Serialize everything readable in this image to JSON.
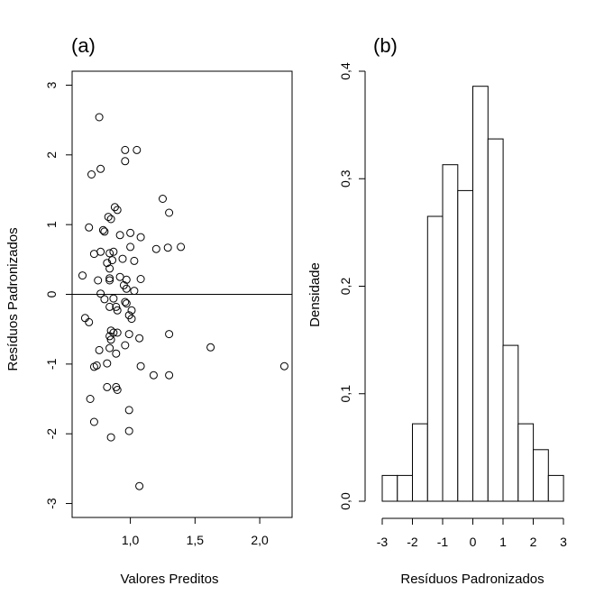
{
  "chart_data": [
    {
      "type": "scatter",
      "panel_label": "(a)",
      "xlabel": "Valores Preditos",
      "ylabel": "Resíduos Padronizados",
      "xlim": [
        0.55,
        2.25
      ],
      "ylim": [
        -3.2,
        3.2
      ],
      "xticks": [
        1.0,
        1.5,
        2.0
      ],
      "xtick_labels": [
        "1,0",
        "1,5",
        "2,0"
      ],
      "yticks": [
        -3,
        -2,
        -1,
        0,
        1,
        2,
        3
      ],
      "ytick_labels": [
        "-3",
        "-2",
        "-1",
        "0",
        "1",
        "2",
        "3"
      ],
      "hline": 0,
      "grid": false,
      "points": [
        [
          0.76,
          2.54
        ],
        [
          0.96,
          2.07
        ],
        [
          1.05,
          2.07
        ],
        [
          0.96,
          1.91
        ],
        [
          0.77,
          1.8
        ],
        [
          0.7,
          1.72
        ],
        [
          1.25,
          1.37
        ],
        [
          0.88,
          1.25
        ],
        [
          0.9,
          1.21
        ],
        [
          1.3,
          1.17
        ],
        [
          0.83,
          1.11
        ],
        [
          0.85,
          1.08
        ],
        [
          0.68,
          0.96
        ],
        [
          0.92,
          0.85
        ],
        [
          0.8,
          0.9
        ],
        [
          0.79,
          0.92
        ],
        [
          1.0,
          0.88
        ],
        [
          1.08,
          0.82
        ],
        [
          1.39,
          0.68
        ],
        [
          1.29,
          0.67
        ],
        [
          1.2,
          0.65
        ],
        [
          1.0,
          0.68
        ],
        [
          0.77,
          0.61
        ],
        [
          0.72,
          0.58
        ],
        [
          0.87,
          0.61
        ],
        [
          0.84,
          0.59
        ],
        [
          0.94,
          0.51
        ],
        [
          0.86,
          0.49
        ],
        [
          0.82,
          0.45
        ],
        [
          1.03,
          0.48
        ],
        [
          0.84,
          0.37
        ],
        [
          0.63,
          0.27
        ],
        [
          0.92,
          0.25
        ],
        [
          1.08,
          0.22
        ],
        [
          0.75,
          0.2
        ],
        [
          0.84,
          0.2
        ],
        [
          0.84,
          0.23
        ],
        [
          0.97,
          0.21
        ],
        [
          0.95,
          0.13
        ],
        [
          0.97,
          0.08
        ],
        [
          1.03,
          0.05
        ],
        [
          0.77,
          0.01
        ],
        [
          0.8,
          -0.07
        ],
        [
          0.87,
          -0.06
        ],
        [
          0.96,
          -0.11
        ],
        [
          0.97,
          -0.13
        ],
        [
          0.84,
          -0.18
        ],
        [
          0.89,
          -0.18
        ],
        [
          0.9,
          -0.23
        ],
        [
          1.01,
          -0.23
        ],
        [
          0.99,
          -0.3
        ],
        [
          1.01,
          -0.35
        ],
        [
          0.65,
          -0.34
        ],
        [
          0.68,
          -0.4
        ],
        [
          0.85,
          -0.52
        ],
        [
          0.87,
          -0.55
        ],
        [
          0.99,
          -0.57
        ],
        [
          0.84,
          -0.6
        ],
        [
          0.9,
          -0.55
        ],
        [
          1.3,
          -0.57
        ],
        [
          1.07,
          -0.63
        ],
        [
          0.85,
          -0.65
        ],
        [
          0.96,
          -0.73
        ],
        [
          0.84,
          -0.77
        ],
        [
          1.62,
          -0.76
        ],
        [
          0.76,
          -0.8
        ],
        [
          0.89,
          -0.85
        ],
        [
          0.82,
          -0.99
        ],
        [
          0.74,
          -1.02
        ],
        [
          0.72,
          -1.04
        ],
        [
          1.08,
          -1.03
        ],
        [
          2.19,
          -1.03
        ],
        [
          1.18,
          -1.16
        ],
        [
          1.3,
          -1.16
        ],
        [
          0.89,
          -1.33
        ],
        [
          0.82,
          -1.33
        ],
        [
          0.9,
          -1.37
        ],
        [
          0.69,
          -1.5
        ],
        [
          0.99,
          -1.66
        ],
        [
          0.72,
          -1.83
        ],
        [
          0.99,
          -1.96
        ],
        [
          0.85,
          -2.05
        ],
        [
          1.07,
          -2.75
        ]
      ]
    },
    {
      "type": "bar",
      "subtype": "histogram",
      "panel_label": "(b)",
      "xlabel": "Resíduos Padronizados",
      "ylabel": "Densidade",
      "xlim": [
        -3,
        3
      ],
      "ylim": [
        0,
        0.4
      ],
      "xticks": [
        -3,
        -2,
        -1,
        0,
        1,
        2,
        3
      ],
      "xtick_labels": [
        "-3",
        "-2",
        "-1",
        "0",
        "1",
        "2",
        "3"
      ],
      "yticks": [
        0.0,
        0.1,
        0.2,
        0.3,
        0.4
      ],
      "ytick_labels": [
        "0,0",
        "0,1",
        "0,2",
        "0,3",
        "0,4"
      ],
      "bin_edges": [
        -3.0,
        -2.5,
        -2.0,
        -1.5,
        -1.0,
        -0.5,
        0.0,
        0.5,
        1.0,
        1.5,
        2.0,
        2.5,
        3.0
      ],
      "values": [
        0.024,
        0.024,
        0.072,
        0.265,
        0.313,
        0.289,
        0.386,
        0.337,
        0.145,
        0.072,
        0.048,
        0.024
      ],
      "grid": false
    }
  ]
}
